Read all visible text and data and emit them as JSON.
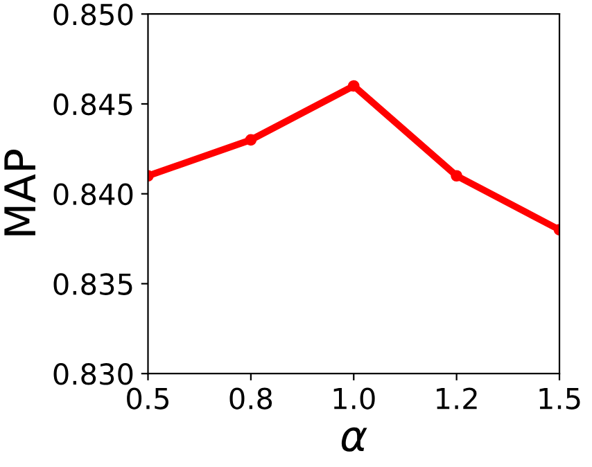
{
  "chart_data": {
    "type": "line",
    "xlabel": "α",
    "ylabel": "MAP",
    "categories": [
      "0.5",
      "0.8",
      "1.0",
      "1.2",
      "1.5"
    ],
    "series": [
      {
        "color": "#ff0000",
        "values": [
          0.841,
          0.843,
          0.846,
          0.841,
          0.838
        ]
      }
    ],
    "ylim": [
      0.83,
      0.85
    ],
    "yticks": [
      {
        "value": 0.83,
        "label": "0.830"
      },
      {
        "value": 0.835,
        "label": "0.835"
      },
      {
        "value": 0.84,
        "label": "0.840"
      },
      {
        "value": 0.845,
        "label": "0.845"
      },
      {
        "value": 0.85,
        "label": "0.850"
      }
    ],
    "marker": "circle",
    "line_style": "solid"
  }
}
